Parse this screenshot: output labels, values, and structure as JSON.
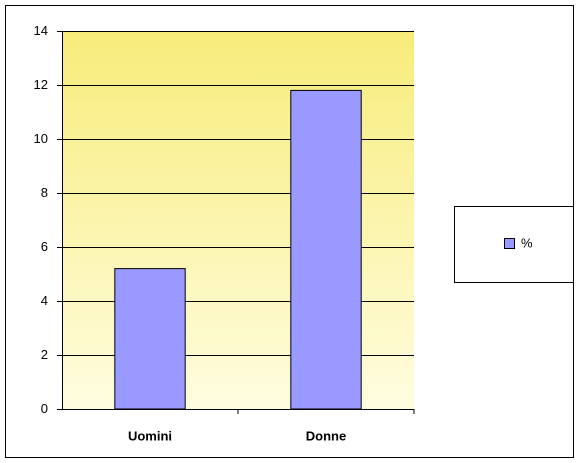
{
  "chart_data": {
    "type": "bar",
    "categories": [
      "Uomini",
      "Donne"
    ],
    "series": [
      {
        "name": "%",
        "color": "#9999ff",
        "values": [
          5.2,
          11.8
        ]
      }
    ],
    "ylim": [
      0,
      14
    ],
    "yticks": [
      0,
      2,
      4,
      6,
      8,
      10,
      12,
      14
    ],
    "grid": true,
    "legend": "right"
  }
}
